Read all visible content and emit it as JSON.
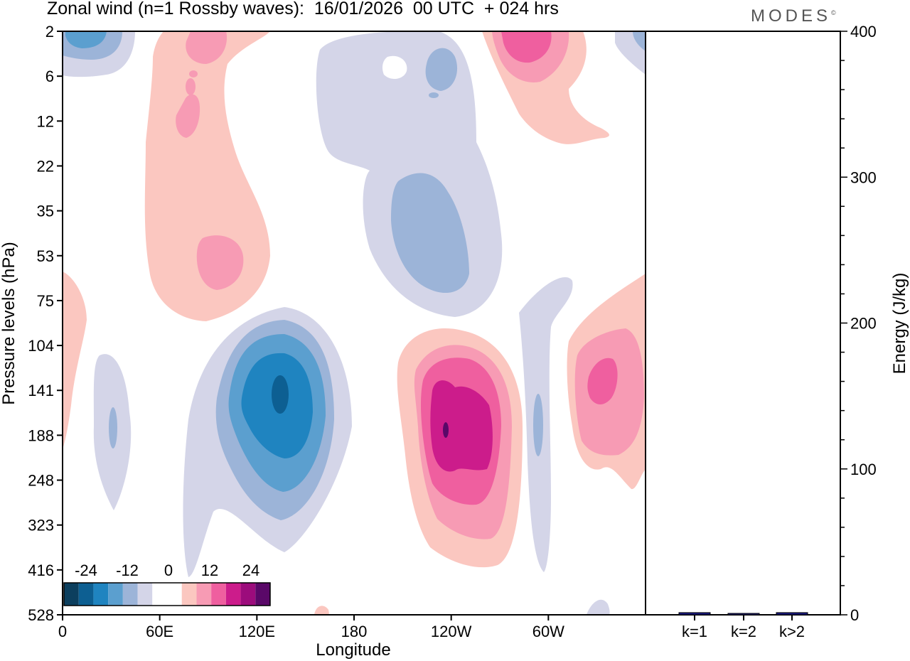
{
  "header": {
    "title": "Zonal wind (n=1 Rossby waves):  16/01/2026  00 UTC  + 024 hrs",
    "logo": "MODES",
    "logo_mark": "©"
  },
  "chart_data": [
    {
      "type": "contour",
      "title": "Zonal wind (n=1 Rossby waves):  16/01/2026  00 UTC  + 024 hrs",
      "xlabel": "Longitude",
      "ylabel": "Pressure levels (hPa)",
      "x_ticks": [
        "0",
        "60E",
        "120E",
        "180",
        "120W",
        "60W"
      ],
      "x_range_deg": [
        0,
        360
      ],
      "y_ticks": [
        "2",
        "6",
        "12",
        "22",
        "35",
        "53",
        "75",
        "104",
        "141",
        "188",
        "248",
        "323",
        "416",
        "528"
      ],
      "colorbar": {
        "labels": [
          "-24",
          "-12",
          "0",
          "12",
          "24"
        ],
        "colors": [
          "#0c3f5e",
          "#0d5f92",
          "#1f84c0",
          "#5b9fcf",
          "#9cb4d8",
          "#d4d5e8",
          "#ffffff",
          "#ffffff",
          "#fbc7c0",
          "#f79bb4",
          "#ef5f9f",
          "#cc1c8b",
          "#9c0c7c",
          "#5a0868"
        ]
      },
      "features": [
        {
          "sign": "negative",
          "lon": 135,
          "level": "141",
          "peak": -24
        },
        {
          "sign": "positive",
          "lon": 238,
          "level": "188",
          "peak": 24
        },
        {
          "sign": "positive",
          "lon": 337,
          "level": "141",
          "peak": 14
        },
        {
          "sign": "negative",
          "lon": 220,
          "level": "35",
          "peak": -6
        },
        {
          "sign": "positive",
          "lon": 97,
          "level": "53",
          "peak": 9
        },
        {
          "sign": "positive",
          "lon": 275,
          "level": "2",
          "peak": 14
        }
      ]
    },
    {
      "type": "bar",
      "ylabel": "Energy (J/kg)",
      "categories": [
        "k=1",
        "k=2",
        "k>2"
      ],
      "values": [
        1.5,
        0.5,
        1.5
      ],
      "ylim": [
        0,
        400
      ],
      "y_ticks": [
        "0",
        "100",
        "200",
        "300",
        "400"
      ]
    }
  ]
}
